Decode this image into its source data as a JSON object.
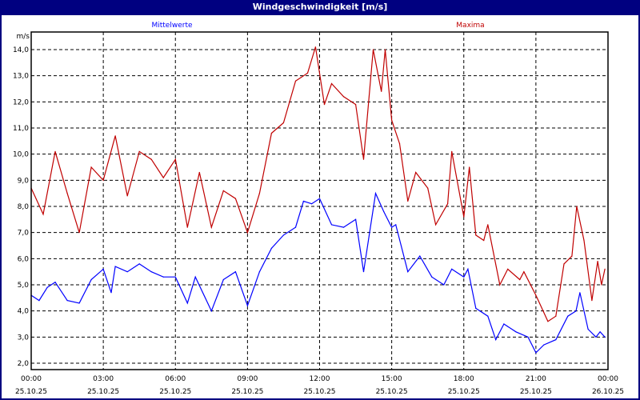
{
  "window": {
    "title": "Windgeschwindigkeit [m/s]"
  },
  "colors": {
    "mean": "#0000ff",
    "max": "#c00000",
    "titlebar": "#000080"
  },
  "chart_data": {
    "type": "line",
    "title": "Windgeschwindigkeit [m/s]",
    "ylabel": "m/s",
    "xlabel": "",
    "ylim": [
      2,
      14
    ],
    "xlim_hours": [
      0,
      24
    ],
    "grid": true,
    "y_ticks": [
      "2,0",
      "3,0",
      "4,0",
      "5,0",
      "6,0",
      "7,0",
      "8,0",
      "9,0",
      "10,0",
      "11,0",
      "12,0",
      "13,0",
      "14,0"
    ],
    "x_ticks": [
      {
        "time": "00:00",
        "date": "25.10.25"
      },
      {
        "time": "03:00",
        "date": "25.10.25"
      },
      {
        "time": "06:00",
        "date": "25.10.25"
      },
      {
        "time": "09:00",
        "date": "25.10.25"
      },
      {
        "time": "12:00",
        "date": "25.10.25"
      },
      {
        "time": "15:00",
        "date": "25.10.25"
      },
      {
        "time": "18:00",
        "date": "25.10.25"
      },
      {
        "time": "21:00",
        "date": "25.10.25"
      },
      {
        "time": "00:00",
        "date": "26.10.25"
      }
    ],
    "series": [
      {
        "name": "Mittelwerte",
        "legend": "top-left",
        "color": "#0000ff",
        "x": [
          0,
          0.33,
          0.67,
          1,
          1.5,
          2,
          2.5,
          3,
          3.33,
          3.5,
          4,
          4.5,
          5,
          5.5,
          6,
          6.5,
          6.83,
          7.5,
          8,
          8.5,
          9,
          9.5,
          10,
          10.5,
          11,
          11.33,
          11.67,
          12,
          12.5,
          13,
          13.5,
          13.83,
          14.33,
          14.67,
          15,
          15.17,
          15.67,
          16.17,
          16.67,
          17.17,
          17.5,
          18,
          18.17,
          18.5,
          19,
          19.33,
          19.67,
          20.17,
          20.67,
          21,
          21.33,
          21.83,
          22.33,
          22.67,
          22.83,
          23.17,
          23.5,
          23.67,
          23.87
        ],
        "y": [
          4.6,
          4.4,
          4.9,
          5.1,
          4.4,
          4.3,
          5.2,
          5.6,
          4.7,
          5.7,
          5.5,
          5.8,
          5.5,
          5.3,
          5.3,
          4.3,
          5.3,
          4.0,
          5.2,
          5.5,
          4.2,
          5.5,
          6.4,
          6.9,
          7.2,
          8.2,
          8.1,
          8.3,
          7.3,
          7.2,
          7.5,
          5.5,
          8.5,
          7.8,
          7.2,
          7.3,
          5.5,
          6.1,
          5.3,
          5.0,
          5.6,
          5.3,
          5.6,
          4.1,
          3.8,
          2.9,
          3.5,
          3.2,
          3.0,
          2.4,
          2.7,
          2.9,
          3.8,
          4.0,
          4.7,
          3.3,
          3.0,
          3.2,
          3.0
        ]
      },
      {
        "name": "Maxima",
        "legend": "top-right",
        "color": "#c00000",
        "x": [
          0,
          0.5,
          1,
          1.5,
          2,
          2.5,
          3,
          3.5,
          4,
          4.5,
          5,
          5.5,
          6,
          6.5,
          7,
          7.5,
          8,
          8.5,
          9,
          9.5,
          10,
          10.5,
          11,
          11.5,
          11.83,
          12.2,
          12.5,
          13,
          13.5,
          13.83,
          14.23,
          14.57,
          14.73,
          15,
          15.33,
          15.67,
          16,
          16.5,
          16.83,
          17.33,
          17.5,
          18,
          18.23,
          18.5,
          18.83,
          19,
          19.5,
          19.83,
          20.33,
          20.5,
          21,
          21.5,
          21.83,
          22.17,
          22.5,
          22.7,
          23,
          23.33,
          23.57,
          23.73,
          23.87
        ],
        "y": [
          8.7,
          7.7,
          10.1,
          8.5,
          7.0,
          9.5,
          9.0,
          10.7,
          8.4,
          10.1,
          9.8,
          9.1,
          9.8,
          7.2,
          9.3,
          7.2,
          8.6,
          8.3,
          7.0,
          8.5,
          10.8,
          11.2,
          12.8,
          13.1,
          14.1,
          11.9,
          12.7,
          12.2,
          11.9,
          9.8,
          14.0,
          12.4,
          14.0,
          11.3,
          10.4,
          8.2,
          9.3,
          8.7,
          7.3,
          8.1,
          10.1,
          7.6,
          9.5,
          6.9,
          6.7,
          7.3,
          5.0,
          5.6,
          5.2,
          5.5,
          4.6,
          3.6,
          3.8,
          5.8,
          6.1,
          8.0,
          6.7,
          4.4,
          5.9,
          5.0,
          5.6
        ]
      }
    ]
  }
}
